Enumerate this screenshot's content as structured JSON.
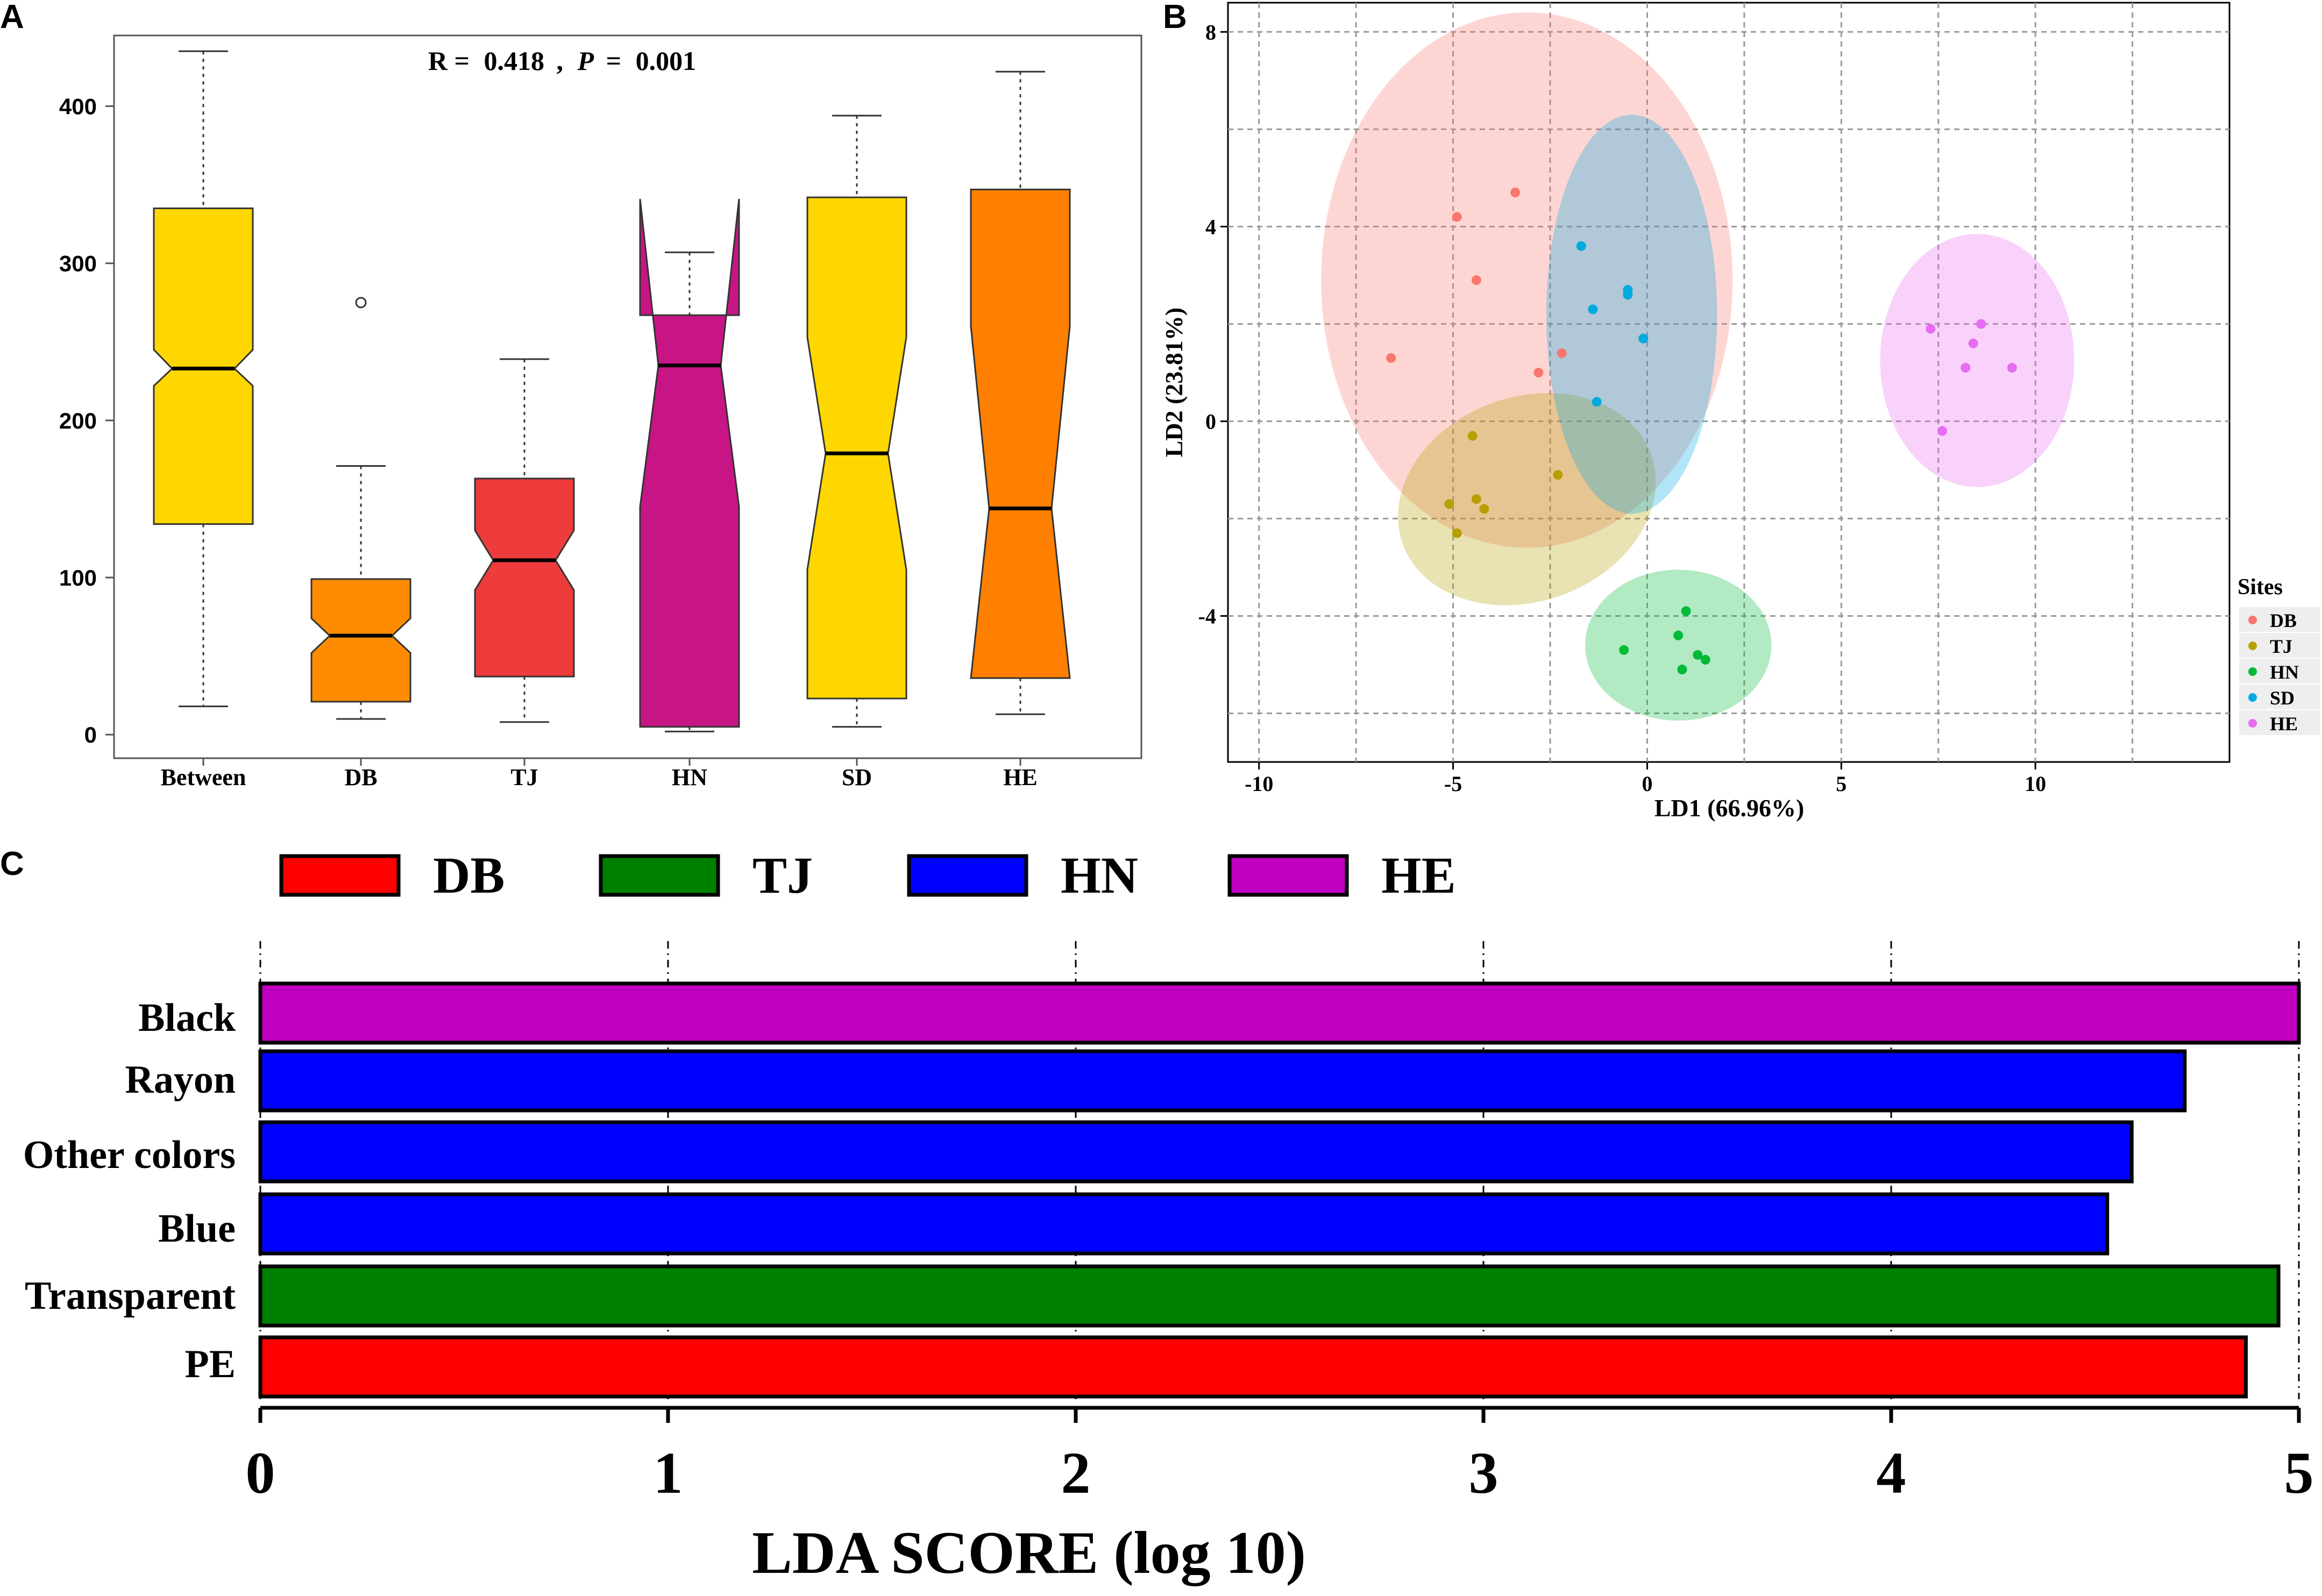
{
  "panel_labels": {
    "a": "A",
    "b": "B",
    "c": "C"
  },
  "chart_data": [
    {
      "type": "box",
      "panel": "A",
      "title": "R = 0.418 , P = 0.001",
      "title_parts": {
        "r_label": "R =",
        "r_value": "0.418",
        "sep": ",",
        "p_label": "P",
        "eq": "=",
        "p_value": "0.001"
      },
      "ylim": [
        -15,
        445
      ],
      "yticks": [
        0,
        100,
        200,
        300,
        400
      ],
      "categories": [
        "Between",
        "DB",
        "TJ",
        "HN",
        "SD",
        "HE"
      ],
      "boxes": [
        {
          "name": "Between",
          "color": "#FFD700",
          "whisker_low": 18,
          "q1": 134,
          "median": 233,
          "q3": 335,
          "whisker_high": 435,
          "notch_low": 222,
          "notch_high": 245,
          "outliers": []
        },
        {
          "name": "DB",
          "color": "#FF8C00",
          "whisker_low": 10,
          "q1": 21,
          "median": 63,
          "q3": 99,
          "whisker_high": 171,
          "notch_low": 52,
          "notch_high": 74,
          "outliers": [
            275
          ]
        },
        {
          "name": "TJ",
          "color": "#EE3B3B",
          "whisker_low": 8,
          "q1": 37,
          "median": 111,
          "q3": 163,
          "whisker_high": 239,
          "notch_low": 92,
          "notch_high": 130,
          "outliers": []
        },
        {
          "name": "HN",
          "color": "#C71585",
          "whisker_low": 2,
          "q1": 5,
          "median": 235,
          "q3": 267,
          "whisker_high": 307,
          "notch_low": 145,
          "notch_high": 341,
          "outliers": []
        },
        {
          "name": "SD",
          "color": "#FFD700",
          "whisker_low": 5,
          "q1": 23,
          "median": 179,
          "q3": 342,
          "whisker_high": 394,
          "notch_low": 105,
          "notch_high": 253,
          "outliers": []
        },
        {
          "name": "HE",
          "color": "#FF7F00",
          "whisker_low": 13,
          "q1": 36,
          "median": 144,
          "q3": 347,
          "whisker_high": 422,
          "notch_low": 36,
          "notch_high": 260,
          "outliers": []
        }
      ]
    },
    {
      "type": "scatter",
      "panel": "B",
      "xlabel": "LD1 (66.96%)",
      "ylabel": "LD2 (23.81%)",
      "xlim": [
        -10.8,
        15
      ],
      "ylim": [
        -7,
        8.6
      ],
      "xticks": [
        -10,
        -5,
        0,
        5,
        10
      ],
      "yticks": [
        -4,
        0,
        4,
        8
      ],
      "grid": true,
      "legend": {
        "title": "Sites",
        "position": "right"
      },
      "series": [
        {
          "name": "DB",
          "color": "#F8766D",
          "ellipse": {
            "cx": -3.1,
            "cy": 2.9,
            "rx": 5.3,
            "ry": 5.5,
            "angle": 0
          },
          "x": [
            -4.9,
            -3.4,
            -4.4,
            -6.6,
            -2.2,
            -2.8
          ],
          "y": [
            4.2,
            4.7,
            2.9,
            1.3,
            1.4,
            1.0
          ]
        },
        {
          "name": "TJ",
          "color": "#B79F00",
          "ellipse": {
            "cx": -3.1,
            "cy": -1.6,
            "rx": 3.4,
            "ry": 2.1,
            "angle": -20
          },
          "x": [
            -4.5,
            -2.3,
            -4.4,
            -4.2,
            -4.9,
            -5.1
          ],
          "y": [
            -0.3,
            -1.1,
            -1.6,
            -1.8,
            -2.3,
            -1.7
          ]
        },
        {
          "name": "HN",
          "color": "#00BA38",
          "ellipse": {
            "cx": 0.8,
            "cy": -4.6,
            "rx": 2.4,
            "ry": 1.55,
            "angle": 0
          },
          "x": [
            1.0,
            0.8,
            -0.6,
            1.3,
            1.5,
            0.9
          ],
          "y": [
            -3.9,
            -4.4,
            -4.7,
            -4.8,
            -4.9,
            -5.1
          ]
        },
        {
          "name": "SD",
          "color": "#00A9E0",
          "ellipse": {
            "cx": -0.4,
            "cy": 2.2,
            "rx": 2.2,
            "ry": 4.1,
            "angle": 0
          },
          "x": [
            -1.7,
            -0.5,
            -0.5,
            -1.4,
            -0.1,
            -1.3
          ],
          "y": [
            3.6,
            2.6,
            2.7,
            2.3,
            1.7,
            0.4
          ]
        },
        {
          "name": "HE",
          "color": "#E76BF3",
          "ellipse": {
            "cx": 8.5,
            "cy": 1.25,
            "rx": 2.5,
            "ry": 2.6,
            "angle": 0
          },
          "x": [
            7.3,
            8.6,
            8.4,
            9.4,
            8.2,
            7.6
          ],
          "y": [
            1.9,
            2.0,
            1.6,
            1.1,
            1.1,
            -0.2
          ]
        }
      ]
    },
    {
      "type": "bar",
      "orientation": "horizontal",
      "panel": "C",
      "xlabel": "LDA SCORE (log 10)",
      "xlim": [
        0,
        5
      ],
      "xticks": [
        0,
        1,
        2,
        3,
        4,
        5
      ],
      "legend": {
        "position": "top",
        "entries": [
          {
            "name": "DB",
            "color": "#FF0000"
          },
          {
            "name": "TJ",
            "color": "#008000"
          },
          {
            "name": "HN",
            "color": "#0000FF"
          },
          {
            "name": "HE",
            "color": "#C000C0"
          }
        ]
      },
      "categories": [
        "Black",
        "Rayon",
        "Other colors",
        "Blue",
        "Transparent",
        "PE"
      ],
      "values": [
        5.0,
        4.72,
        4.59,
        4.53,
        4.95,
        4.87
      ],
      "groups": [
        "HE",
        "HN",
        "HN",
        "HN",
        "TJ",
        "DB"
      ]
    }
  ]
}
